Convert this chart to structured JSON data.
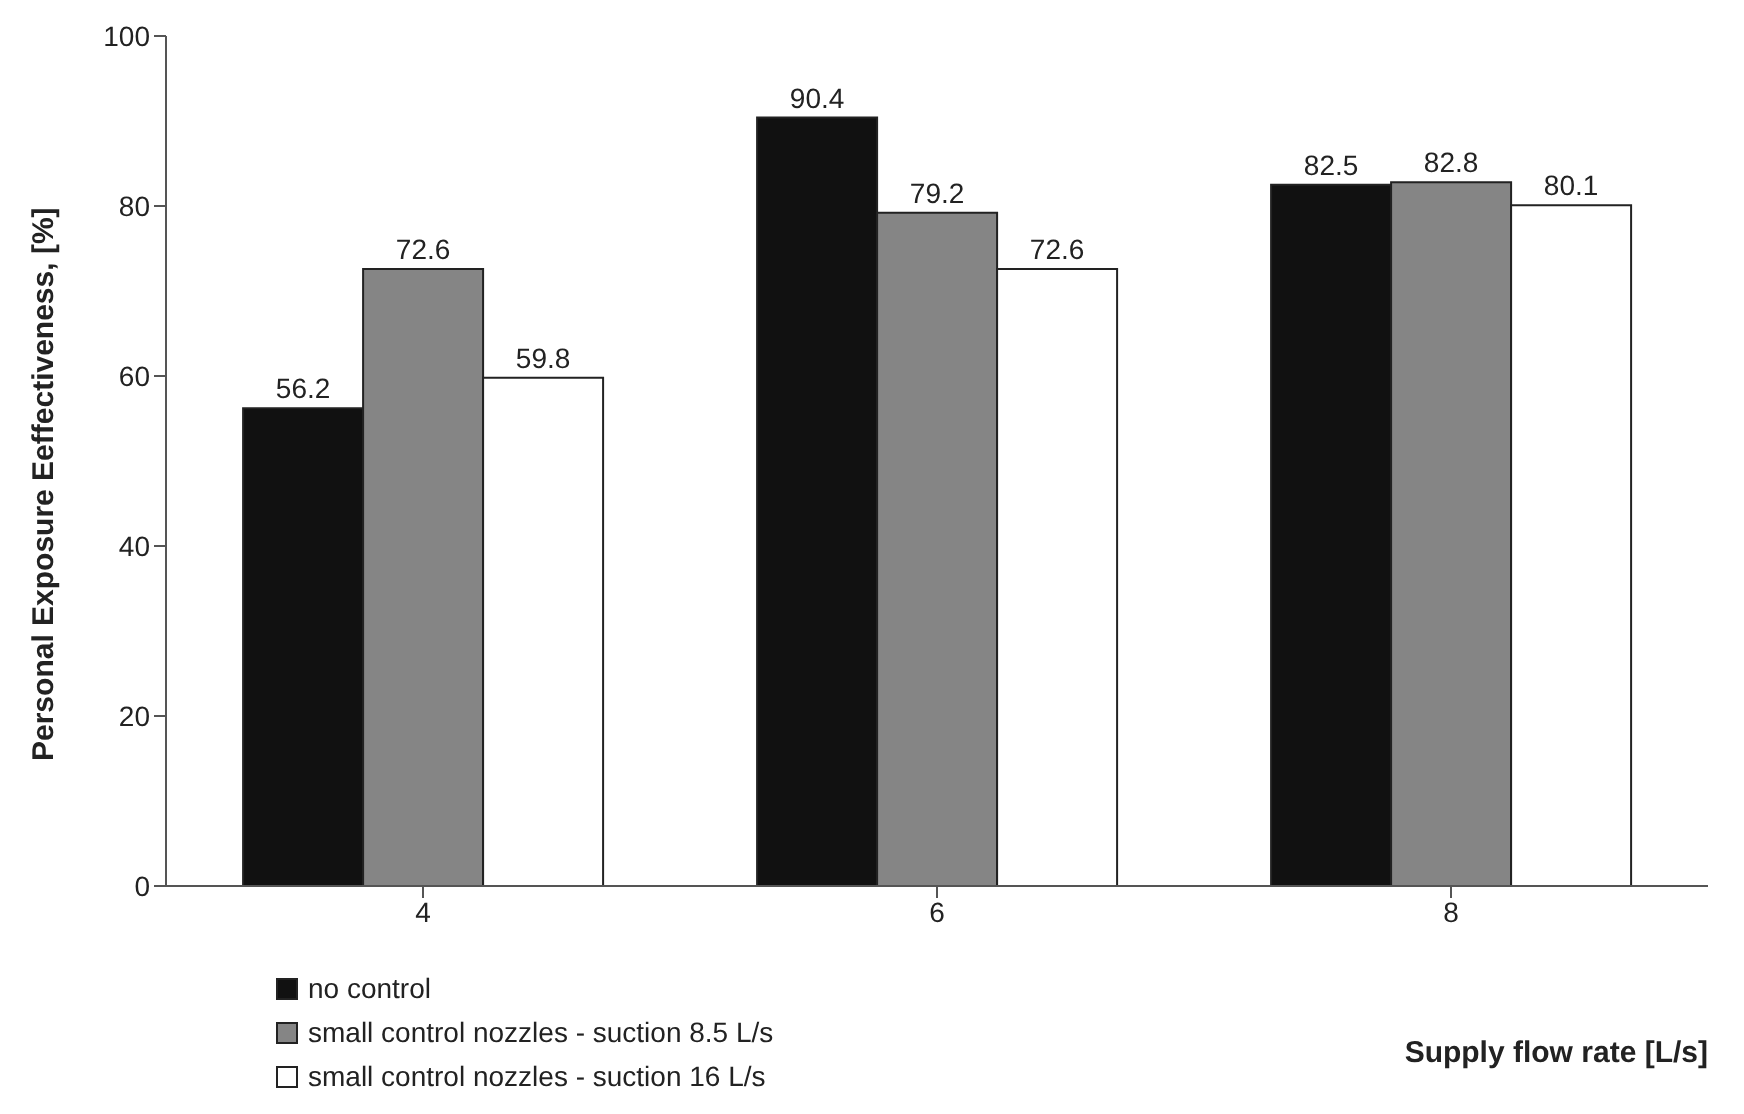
{
  "chart_data": {
    "type": "bar",
    "xlabel": "Supply flow rate  [L/s]",
    "ylabel": "Personal Exposure Eeffectiveness, [%]",
    "categories": [
      "4",
      "6",
      "8"
    ],
    "series": [
      {
        "name": "no control",
        "color": "#111111",
        "values": [
          56.2,
          90.4,
          82.5
        ]
      },
      {
        "name": "small control nozzles - suction 8.5 L/s",
        "color": "#858585",
        "values": [
          72.6,
          79.2,
          82.8
        ]
      },
      {
        "name": "small control nozzles - suction 16 L/s",
        "color": "#ffffff",
        "values": [
          59.8,
          72.6,
          80.1
        ]
      }
    ],
    "ylim": [
      0,
      100
    ],
    "yticks": [
      0,
      20,
      40,
      60,
      80,
      100
    ],
    "grid": false,
    "legend": "bottom left",
    "data_labels": true
  }
}
